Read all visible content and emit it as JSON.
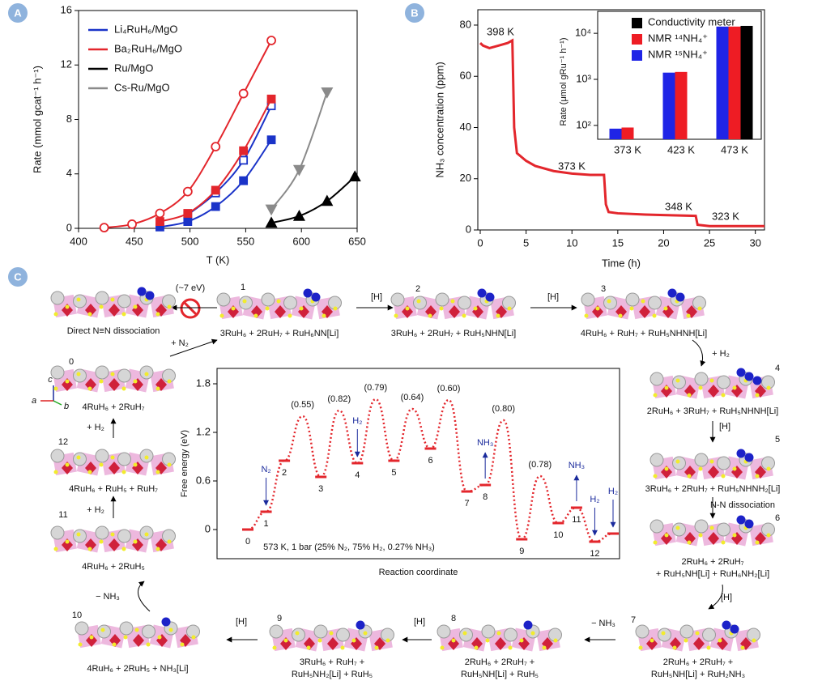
{
  "chart_data": [
    {
      "type": "scatter",
      "panel_label": "A",
      "xlabel": "T (K)",
      "ylabel": "Rate (mmol gcat⁻¹ h⁻¹)",
      "xlim": [
        400,
        650
      ],
      "xticks": [
        400,
        450,
        500,
        550,
        600,
        650
      ],
      "ylim": [
        0,
        16
      ],
      "yticks": [
        0,
        4,
        8,
        12,
        16
      ],
      "series": [
        {
          "name": "Li₄RuH₆/MgO",
          "color": "#1a33c8",
          "sets": [
            {
              "marker": "square",
              "filled": false,
              "x": [
                498,
                523,
                548,
                573
              ],
              "values": [
                1.0,
                2.6,
                5.0,
                9.0
              ]
            },
            {
              "marker": "square",
              "filled": true,
              "x": [
                473,
                498,
                523,
                548,
                573
              ],
              "values": [
                0.1,
                0.5,
                1.6,
                3.5,
                6.5
              ]
            }
          ]
        },
        {
          "name": "Ba₂RuH₆/MgO",
          "color": "#e3262c",
          "sets": [
            {
              "marker": "circle",
              "filled": false,
              "x": [
                423,
                448,
                473,
                498,
                523,
                548,
                573
              ],
              "values": [
                0.05,
                0.3,
                1.1,
                2.7,
                6.0,
                9.9,
                13.8
              ]
            },
            {
              "marker": "square",
              "filled": true,
              "x": [
                473,
                498,
                523,
                548,
                573
              ],
              "values": [
                0.5,
                1.1,
                2.8,
                5.7,
                9.5
              ]
            }
          ]
        },
        {
          "name": "Ru/MgO",
          "color": "#000000",
          "sets": [
            {
              "marker": "triangle-up",
              "filled": true,
              "x": [
                573,
                598,
                623,
                648
              ],
              "values": [
                0.4,
                0.9,
                2.0,
                3.8
              ]
            }
          ]
        },
        {
          "name": "Cs-Ru/MgO",
          "color": "#8a8a8a",
          "sets": [
            {
              "marker": "triangle-down",
              "filled": true,
              "x": [
                573,
                598,
                623
              ],
              "values": [
                1.4,
                4.3,
                10.0
              ]
            }
          ]
        }
      ]
    },
    {
      "type": "line",
      "panel_label": "B",
      "xlabel": "Time (h)",
      "ylabel": "NH₃ concentration (ppm)",
      "xlim": [
        0,
        31
      ],
      "xticks": [
        0,
        5,
        10,
        15,
        20,
        25,
        30
      ],
      "ylim": [
        0,
        86
      ],
      "yticks": [
        0,
        20,
        40,
        60,
        80
      ],
      "series": [
        {
          "color": "#e3262c",
          "x": [
            0,
            0.3,
            1,
            2,
            3,
            3.5,
            3.7,
            4,
            5,
            6,
            8,
            10,
            12,
            13.5,
            13.7,
            14,
            15,
            18,
            20,
            23.5,
            23.7,
            25,
            28,
            31
          ],
          "values": [
            73,
            72,
            71,
            72,
            73,
            74,
            40,
            30,
            27,
            25,
            23,
            22,
            21.5,
            21.5,
            10,
            7,
            6.5,
            6,
            5.8,
            5.5,
            2,
            1.5,
            1.5,
            1.5
          ]
        }
      ],
      "annotations": [
        "398 K",
        "373 K",
        "348 K",
        "323 K"
      ]
    },
    {
      "type": "bar",
      "log_scale": true,
      "ylabel": "Rate (μmol gRu⁻¹ h⁻¹)",
      "categories": [
        "373 K",
        "423 K",
        "473 K"
      ],
      "ylim": [
        50,
        30000
      ],
      "yticks": [
        {
          "value": 100,
          "label": "10²"
        },
        {
          "value": 1000,
          "label": "10³"
        },
        {
          "value": 10000,
          "label": "10⁴"
        }
      ],
      "series": [
        {
          "name": "NMR ¹⁵NH₄⁺",
          "color": "#1f24e6",
          "values": [
            85,
            1400,
            14000
          ]
        },
        {
          "name": "NMR ¹⁴NH₄⁺",
          "color": "#ee1c24",
          "values": [
            90,
            1450,
            14000
          ]
        },
        {
          "name": "Conductivity meter",
          "color": "#000000",
          "values": [
            null,
            null,
            14500
          ]
        }
      ]
    },
    {
      "type": "energy_profile",
      "xlabel": "Reaction coordinate",
      "ylabel": "Free energy (eV)",
      "condition": "573 K, 1 bar (25% N₂, 75% H₂, 0.27% NH₃)",
      "color": "#e3262c",
      "ylim": [
        -0.36,
        1.99
      ],
      "yticks": [
        0,
        0.6,
        1.2,
        1.8
      ],
      "categories": [
        "0",
        "1",
        "2",
        null,
        "3",
        null,
        "4",
        null,
        "5",
        null,
        "6",
        null,
        "7",
        "8",
        null,
        "9",
        null,
        "10",
        "11",
        "12",
        null
      ],
      "values": [
        0,
        0.22,
        0.85,
        1.4,
        0.65,
        1.47,
        0.82,
        1.61,
        0.85,
        1.49,
        1.0,
        1.6,
        0.47,
        0.55,
        1.35,
        -0.12,
        0.66,
        0.08,
        0.27,
        -0.15,
        -0.05
      ],
      "barriers": [
        null,
        null,
        null,
        {
          "value": 0.55,
          "label": "(0.55)"
        },
        null,
        {
          "value": 0.82,
          "label": "(0.82)"
        },
        null,
        {
          "value": 0.79,
          "label": "(0.79)"
        },
        null,
        {
          "value": 0.64,
          "label": "(0.64)"
        },
        null,
        {
          "value": 0.6,
          "label": "(0.60)"
        },
        null,
        null,
        {
          "value": 0.8,
          "label": "(0.80)"
        },
        null,
        {
          "value": 0.78,
          "label": "(0.78)"
        },
        null,
        null,
        null,
        null
      ],
      "annotations": [
        null,
        {
          "text": "N₂",
          "direction": "down"
        },
        null,
        null,
        null,
        null,
        {
          "text": "H₂",
          "direction": "down"
        },
        null,
        null,
        null,
        null,
        null,
        null,
        {
          "text": "NH₃",
          "direction": "up"
        },
        null,
        null,
        null,
        null,
        {
          "text": "NH₃",
          "direction": "up"
        },
        {
          "text": "H₂",
          "direction": "down"
        },
        {
          "text": "H₂",
          "direction": "down"
        }
      ]
    }
  ],
  "diagram": {
    "panel_label": "C",
    "nodes": [
      {
        "id": "0",
        "lines": [
          "4RuH₆ + 2RuH₇"
        ]
      },
      {
        "id": "1",
        "lines": [
          "3RuH₆ + 2RuH₇ + RuH₆NN[Li]"
        ]
      },
      {
        "id": "2",
        "lines": [
          "3RuH₆ + 2RuH₇ + RuH₅NHN[Li]"
        ]
      },
      {
        "id": "3",
        "lines": [
          "4RuH₆ + RuH₇ + RuH₅NHNH[Li]"
        ]
      },
      {
        "id": "4",
        "lines": [
          "2RuH₆ + 3RuH₇ + RuH₅NHNH[Li]"
        ]
      },
      {
        "id": "5",
        "lines": [
          "3RuH₆ + 2RuH₇ + RuH₅NHNH₂[Li]"
        ]
      },
      {
        "id": "6",
        "lines": [
          "2RuH₆ + 2RuH₇",
          "+ RuH₅NH[Li] + RuH₆NH₂[Li]"
        ]
      },
      {
        "id": "7",
        "lines": [
          "2RuH₆ + 2RuH₇ +",
          "RuH₅NH[Li] + RuH₂NH₃"
        ]
      },
      {
        "id": "8",
        "lines": [
          "2RuH₆ + 2RuH₇ +",
          "RuH₅NH[Li] + RuH₅"
        ]
      },
      {
        "id": "9",
        "lines": [
          "3RuH₆ + RuH₇ +",
          "RuH₅NH₂[Li] + RuH₅"
        ]
      },
      {
        "id": "10",
        "lines": [
          "4RuH₆ + 2RuH₅ + NH₃[Li]"
        ]
      },
      {
        "id": "11",
        "lines": [
          "4RuH₆ + 2RuH₅"
        ]
      },
      {
        "id": "12",
        "lines": [
          "4RuH₆ + RuH₅ + RuH₇"
        ]
      }
    ],
    "direct": {
      "label": "Direct N≡N dissociation",
      "energy": "(~7 eV)"
    },
    "arrow_labels": [
      "+ N₂",
      "[H]",
      "[H]",
      "+ H₂",
      "[H]",
      "N-N dissociation",
      "[H]",
      "− NH₃",
      "[H]",
      "[H]",
      "− NH₃",
      "+ H₂",
      "+ H₂"
    ],
    "axes": [
      "a",
      "b",
      "c"
    ]
  }
}
